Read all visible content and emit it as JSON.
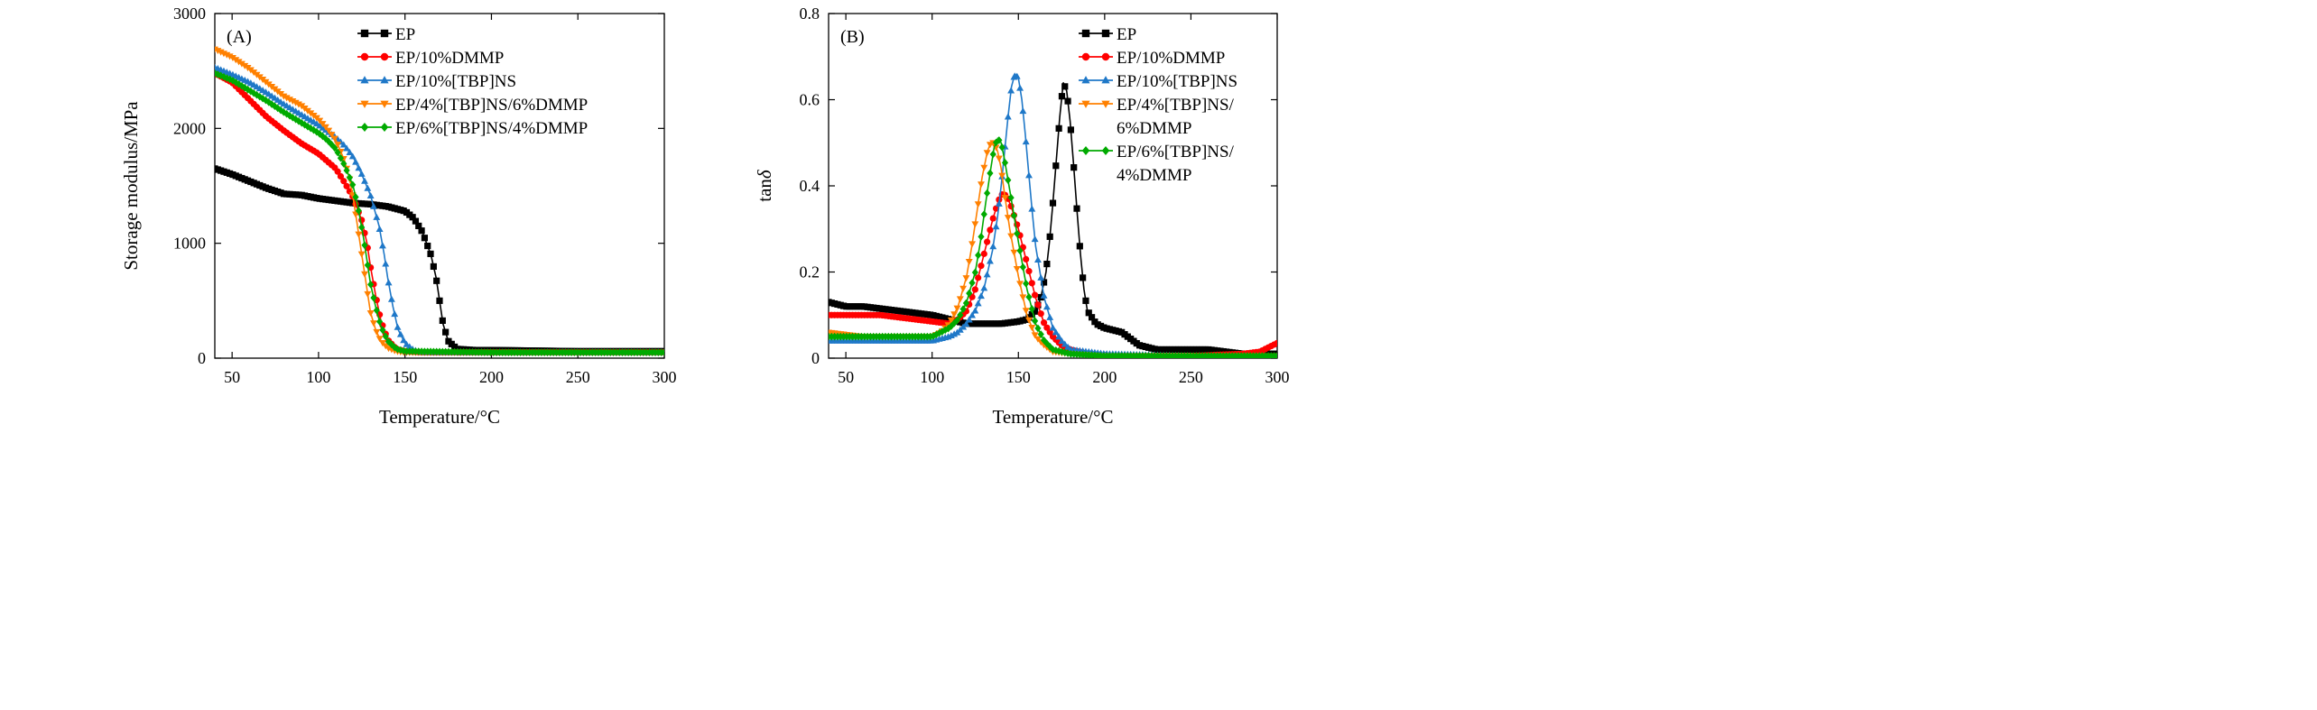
{
  "colors": {
    "EP": "#000000",
    "EP/10%DMMP": "#ff0000",
    "EP/10%[TBP]NS": "#1f78c8",
    "EP/4%[TBP]NS/6%DMMP": "#ff8000",
    "EP/6%[TBP]NS/4%DMMP": "#00aa00"
  },
  "chart_data": [
    {
      "type": "line",
      "panel_label": "(A)",
      "xlabel": "Temperature/°C",
      "ylabel": "Storage modulus/MPa",
      "xlim": [
        40,
        300
      ],
      "ylim": [
        0,
        3000
      ],
      "xticks": [
        50,
        100,
        150,
        200,
        250,
        300
      ],
      "yticks": [
        0,
        1000,
        2000,
        3000
      ],
      "legend_position": "top-right",
      "series": [
        {
          "name": "EP",
          "legend_lines": [
            "EP"
          ],
          "marker": "square",
          "x": [
            40,
            50,
            60,
            70,
            80,
            90,
            100,
            110,
            120,
            130,
            140,
            150,
            155,
            160,
            165,
            168,
            170,
            172,
            175,
            180,
            190,
            200,
            250,
            300
          ],
          "y": [
            1650,
            1600,
            1540,
            1480,
            1430,
            1420,
            1390,
            1370,
            1350,
            1340,
            1320,
            1280,
            1220,
            1100,
            900,
            700,
            500,
            300,
            150,
            80,
            70,
            70,
            60,
            60
          ]
        },
        {
          "name": "EP/10%DMMP",
          "legend_lines": [
            "EP/10%DMMP"
          ],
          "marker": "circle",
          "x": [
            40,
            50,
            60,
            70,
            80,
            90,
            100,
            110,
            115,
            120,
            125,
            128,
            130,
            133,
            136,
            140,
            145,
            150,
            160,
            200,
            250,
            300
          ],
          "y": [
            2480,
            2400,
            2250,
            2100,
            1980,
            1870,
            1780,
            1650,
            1530,
            1400,
            1200,
            1000,
            800,
            550,
            330,
            160,
            80,
            60,
            50,
            50,
            50,
            50
          ]
        },
        {
          "name": "EP/10%[TBP]NS",
          "legend_lines": [
            "EP/10%[TBP]NS"
          ],
          "marker": "triangle-up",
          "x": [
            40,
            50,
            60,
            70,
            80,
            90,
            100,
            110,
            115,
            120,
            125,
            130,
            135,
            138,
            140,
            143,
            146,
            150,
            155,
            160,
            200,
            250,
            300
          ],
          "y": [
            2530,
            2470,
            2400,
            2310,
            2210,
            2120,
            2030,
            1920,
            1850,
            1750,
            1600,
            1420,
            1150,
            900,
            700,
            450,
            250,
            130,
            70,
            50,
            50,
            50,
            50
          ]
        },
        {
          "name": "EP/4%[TBP]NS/6%DMMP",
          "legend_lines": [
            "EP/4%[TBP]NS/6%DMMP"
          ],
          "marker": "triangle-down",
          "x": [
            40,
            50,
            60,
            70,
            80,
            90,
            100,
            105,
            110,
            115,
            118,
            120,
            122,
            125,
            128,
            130,
            133,
            136,
            140,
            145,
            150,
            200,
            250,
            300
          ],
          "y": [
            2690,
            2620,
            2520,
            2400,
            2280,
            2200,
            2080,
            2000,
            1900,
            1720,
            1560,
            1400,
            1200,
            900,
            600,
            400,
            250,
            150,
            90,
            60,
            50,
            50,
            50,
            50
          ]
        },
        {
          "name": "EP/6%[TBP]NS/4%DMMP",
          "legend_lines": [
            "EP/6%[TBP]NS/4%DMMP"
          ],
          "marker": "diamond",
          "x": [
            40,
            50,
            60,
            70,
            80,
            90,
            100,
            105,
            110,
            115,
            120,
            123,
            126,
            128,
            130,
            133,
            136,
            140,
            145,
            150,
            200,
            250,
            300
          ],
          "y": [
            2480,
            2420,
            2330,
            2240,
            2140,
            2050,
            1960,
            1900,
            1820,
            1680,
            1500,
            1300,
            1050,
            850,
            650,
            450,
            280,
            150,
            80,
            60,
            50,
            50,
            50
          ]
        }
      ]
    },
    {
      "type": "line",
      "panel_label": "(B)",
      "xlabel": "Temperature/°C",
      "ylabel_main": "tan",
      "ylabel_symbol": "δ",
      "xlim": [
        40,
        300
      ],
      "ylim": [
        0,
        0.8
      ],
      "xticks": [
        50,
        100,
        150,
        200,
        250,
        300
      ],
      "yticks": [
        0,
        0.2,
        0.4,
        0.6,
        0.8
      ],
      "ytick_labels": [
        "0",
        "0.2",
        "0.4",
        "0.6",
        "0.8"
      ],
      "legend_position": "top-right",
      "series": [
        {
          "name": "EP",
          "legend_lines": [
            "EP"
          ],
          "marker": "square",
          "x": [
            40,
            50,
            60,
            70,
            80,
            90,
            100,
            110,
            120,
            130,
            140,
            150,
            155,
            160,
            163,
            166,
            168,
            170,
            172,
            174,
            176,
            178,
            180,
            182,
            184,
            186,
            188,
            190,
            195,
            200,
            210,
            220,
            230,
            240,
            250,
            260,
            270,
            280,
            290,
            300
          ],
          "y": [
            0.13,
            0.12,
            0.12,
            0.115,
            0.11,
            0.105,
            0.1,
            0.09,
            0.08,
            0.08,
            0.08,
            0.085,
            0.09,
            0.11,
            0.14,
            0.2,
            0.27,
            0.36,
            0.46,
            0.56,
            0.64,
            0.62,
            0.55,
            0.45,
            0.34,
            0.24,
            0.16,
            0.11,
            0.08,
            0.07,
            0.06,
            0.03,
            0.02,
            0.02,
            0.02,
            0.02,
            0.015,
            0.01,
            0.01,
            0.01
          ]
        },
        {
          "name": "EP/10%DMMP",
          "legend_lines": [
            "EP/10%DMMP"
          ],
          "marker": "circle",
          "x": [
            40,
            50,
            60,
            70,
            80,
            90,
            100,
            110,
            115,
            120,
            125,
            130,
            135,
            138,
            140,
            142,
            144,
            146,
            150,
            155,
            160,
            165,
            170,
            175,
            180,
            190,
            200,
            220,
            250,
            280,
            290,
            295,
            300
          ],
          "y": [
            0.1,
            0.1,
            0.1,
            0.1,
            0.095,
            0.09,
            0.085,
            0.08,
            0.09,
            0.11,
            0.16,
            0.24,
            0.32,
            0.36,
            0.38,
            0.38,
            0.37,
            0.35,
            0.3,
            0.22,
            0.14,
            0.08,
            0.05,
            0.03,
            0.02,
            0.01,
            0.005,
            0.005,
            0.005,
            0.01,
            0.015,
            0.025,
            0.035
          ]
        },
        {
          "name": "EP/10%[TBP]NS",
          "legend_lines": [
            "EP/10%[TBP]NS"
          ],
          "marker": "triangle-up",
          "x": [
            40,
            60,
            80,
            100,
            110,
            115,
            120,
            125,
            130,
            135,
            138,
            140,
            142,
            144,
            146,
            148,
            150,
            152,
            154,
            156,
            158,
            160,
            165,
            170,
            175,
            180,
            200,
            250,
            300
          ],
          "y": [
            0.04,
            0.04,
            0.04,
            0.04,
            0.05,
            0.06,
            0.08,
            0.11,
            0.16,
            0.25,
            0.33,
            0.4,
            0.48,
            0.56,
            0.63,
            0.66,
            0.65,
            0.6,
            0.52,
            0.43,
            0.34,
            0.26,
            0.14,
            0.07,
            0.04,
            0.02,
            0.01,
            0.005,
            0.005
          ]
        },
        {
          "name": "EP/4%[TBP]NS/6%DMMP",
          "legend_lines": [
            "EP/4%[TBP]NS/",
            "6%DMMP"
          ],
          "marker": "triangle-down",
          "x": [
            40,
            60,
            80,
            100,
            105,
            110,
            115,
            120,
            123,
            126,
            129,
            132,
            134,
            136,
            138,
            140,
            142,
            145,
            150,
            155,
            160,
            165,
            170,
            180,
            200,
            250,
            300
          ],
          "y": [
            0.06,
            0.05,
            0.05,
            0.05,
            0.06,
            0.08,
            0.12,
            0.19,
            0.26,
            0.34,
            0.42,
            0.48,
            0.5,
            0.5,
            0.48,
            0.44,
            0.38,
            0.3,
            0.19,
            0.1,
            0.05,
            0.03,
            0.015,
            0.01,
            0.005,
            0.005,
            0.005
          ]
        },
        {
          "name": "EP/6%[TBP]NS/4%DMMP",
          "legend_lines": [
            "EP/6%[TBP]NS/",
            "4%DMMP"
          ],
          "marker": "diamond",
          "x": [
            40,
            60,
            80,
            100,
            105,
            110,
            115,
            120,
            125,
            128,
            131,
            134,
            136,
            138,
            140,
            142,
            145,
            150,
            155,
            160,
            165,
            170,
            180,
            200,
            250,
            300
          ],
          "y": [
            0.05,
            0.05,
            0.05,
            0.05,
            0.06,
            0.07,
            0.09,
            0.13,
            0.2,
            0.27,
            0.36,
            0.44,
            0.49,
            0.51,
            0.5,
            0.46,
            0.39,
            0.27,
            0.16,
            0.08,
            0.04,
            0.02,
            0.01,
            0.005,
            0.005,
            0.005
          ]
        }
      ]
    }
  ]
}
